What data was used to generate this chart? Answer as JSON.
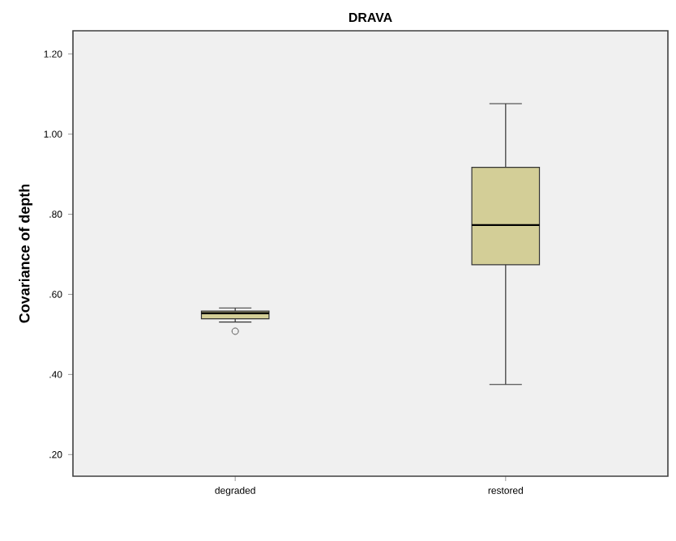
{
  "chart_data": {
    "type": "box",
    "title": "DRAVA",
    "ylabel": "Covariance of depth",
    "categories": [
      "degraded",
      "restored"
    ],
    "series": [
      {
        "color": "#d3ce97",
        "boxes": [
          {
            "low": 0.531,
            "q1": 0.539,
            "median": 0.553,
            "q3": 0.558,
            "high": 0.566,
            "outliers": [
              0.508
            ]
          },
          {
            "low": 0.375,
            "q1": 0.674,
            "median": 0.773,
            "q3": 0.917,
            "high": 1.076
          }
        ]
      }
    ],
    "ylim": [
      0.146,
      1.258
    ],
    "yticks": [
      {
        "value": 0.2,
        "label": ".20"
      },
      {
        "value": 0.4,
        "label": ".40"
      },
      {
        "value": 0.6,
        "label": ".60"
      },
      {
        "value": 0.8,
        "label": ".80"
      },
      {
        "value": 1.0,
        "label": "1.00"
      },
      {
        "value": 1.2,
        "label": "1.20"
      }
    ],
    "grid": false
  }
}
